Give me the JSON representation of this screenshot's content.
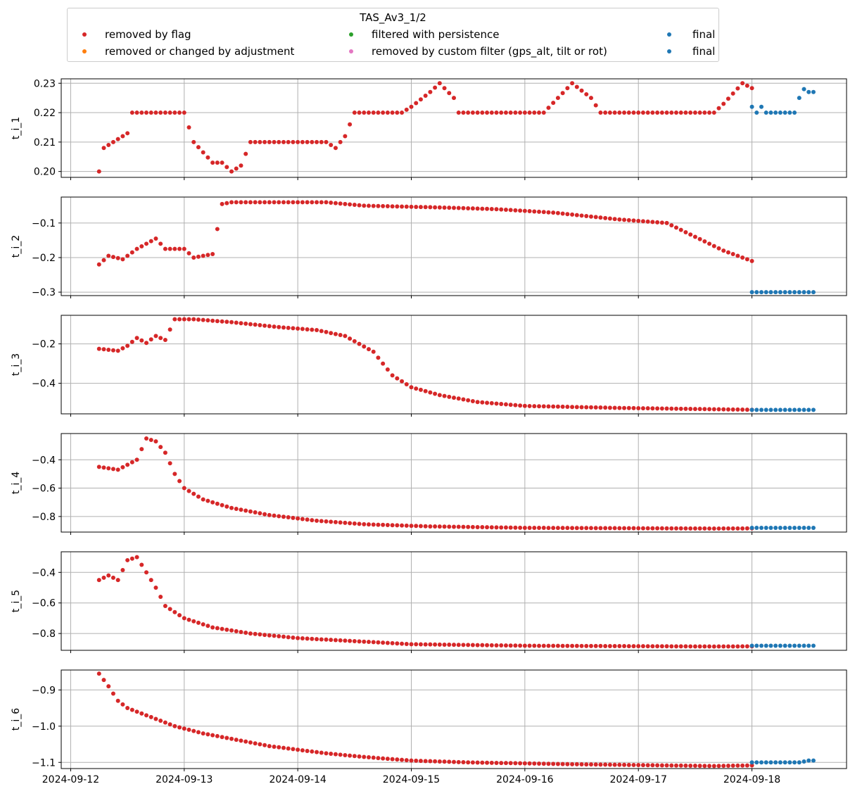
{
  "chart_data": {
    "type": "scatter",
    "legend": {
      "title": "TAS_Av3_1/2",
      "placement": "top-center",
      "entries": [
        {
          "label": "removed by flag",
          "color": "#d62728"
        },
        {
          "label": "removed or changed by adjustment",
          "color": "#ff7f0e"
        },
        {
          "label": "filtered with persistence",
          "color": "#2ca02c"
        },
        {
          "label": "removed by custom filter (gps_alt, tilt or rot)",
          "color": "#e377c2"
        },
        {
          "label": "final",
          "color": "#1f77b4"
        },
        {
          "label": "final",
          "color": "#1f77b4"
        }
      ]
    },
    "x_axis": {
      "type": "date",
      "range": [
        "2024-09-11 22:00",
        "2024-09-18 20:00"
      ],
      "ticks": [
        "2024-09-12",
        "2024-09-13",
        "2024-09-14",
        "2024-09-15",
        "2024-09-16",
        "2024-09-17",
        "2024-09-18"
      ]
    },
    "grid": true,
    "sampling": "hourly",
    "flag_start": "2024-09-12 06:00",
    "final_start": "2024-09-18 00:00",
    "final_end": "2024-09-18 13:00",
    "panels": [
      {
        "ylabel": "t_i_1",
        "ylim": [
          0.198,
          0.2315
        ],
        "yticks": [
          "0.20",
          "0.21",
          "0.22",
          "0.23"
        ],
        "anchors_flag": [
          [
            0,
            0.2
          ],
          [
            1,
            0.208
          ],
          [
            3,
            0.21
          ],
          [
            6,
            0.213
          ],
          [
            7,
            0.22
          ],
          [
            18,
            0.22
          ],
          [
            20,
            0.21
          ],
          [
            24,
            0.203
          ],
          [
            26,
            0.203
          ],
          [
            28,
            0.2
          ],
          [
            30,
            0.202
          ],
          [
            32,
            0.21
          ],
          [
            48,
            0.21
          ],
          [
            50,
            0.208
          ],
          [
            52,
            0.212
          ],
          [
            54,
            0.22
          ],
          [
            64,
            0.22
          ],
          [
            66,
            0.222
          ],
          [
            70,
            0.227
          ],
          [
            72,
            0.23
          ],
          [
            75,
            0.225
          ],
          [
            76,
            0.22
          ],
          [
            94,
            0.22
          ],
          [
            97,
            0.225
          ],
          [
            100,
            0.23
          ],
          [
            104,
            0.225
          ],
          [
            106,
            0.22
          ],
          [
            130,
            0.22
          ],
          [
            132,
            0.223
          ],
          [
            136,
            0.23
          ],
          [
            142,
            0.225
          ],
          [
            144,
            0.22
          ],
          [
            158,
            0.22
          ],
          [
            160,
            0.223
          ],
          [
            162,
            0.23
          ],
          [
            170,
            0.227
          ],
          [
            172,
            0.22
          ],
          [
            174,
            0.22
          ]
        ],
        "anchors_final": [
          [
            0,
            0.222
          ],
          [
            1,
            0.22
          ],
          [
            2,
            0.222
          ],
          [
            3,
            0.22
          ],
          [
            9,
            0.22
          ],
          [
            10,
            0.225
          ],
          [
            11,
            0.228
          ],
          [
            12,
            0.227
          ]
        ]
      },
      {
        "ylabel": "t_i_2",
        "ylim": [
          -0.31,
          -0.025
        ],
        "yticks": [
          "−0.1",
          "−0.2",
          "−0.3"
        ],
        "anchors_flag": [
          [
            0,
            -0.22
          ],
          [
            2,
            -0.195
          ],
          [
            5,
            -0.205
          ],
          [
            8,
            -0.175
          ],
          [
            12,
            -0.145
          ],
          [
            14,
            -0.175
          ],
          [
            18,
            -0.175
          ],
          [
            20,
            -0.2
          ],
          [
            24,
            -0.19
          ],
          [
            26,
            -0.045
          ],
          [
            28,
            -0.04
          ],
          [
            48,
            -0.04
          ],
          [
            56,
            -0.05
          ],
          [
            72,
            -0.055
          ],
          [
            84,
            -0.06
          ],
          [
            96,
            -0.07
          ],
          [
            110,
            -0.09
          ],
          [
            120,
            -0.1
          ],
          [
            132,
            -0.18
          ],
          [
            144,
            -0.24
          ],
          [
            156,
            -0.27
          ],
          [
            168,
            -0.295
          ],
          [
            174,
            -0.3
          ]
        ],
        "anchors_final": [
          [
            0,
            -0.3
          ],
          [
            12,
            -0.3
          ]
        ]
      },
      {
        "ylabel": "t_i_3",
        "ylim": [
          -0.555,
          -0.055
        ],
        "yticks": [
          "−0.2",
          "−0.4"
        ],
        "anchors_flag": [
          [
            0,
            -0.225
          ],
          [
            2,
            -0.23
          ],
          [
            4,
            -0.235
          ],
          [
            6,
            -0.21
          ],
          [
            8,
            -0.17
          ],
          [
            10,
            -0.195
          ],
          [
            12,
            -0.16
          ],
          [
            14,
            -0.18
          ],
          [
            16,
            -0.075
          ],
          [
            20,
            -0.075
          ],
          [
            28,
            -0.09
          ],
          [
            38,
            -0.115
          ],
          [
            46,
            -0.13
          ],
          [
            52,
            -0.16
          ],
          [
            58,
            -0.24
          ],
          [
            62,
            -0.36
          ],
          [
            66,
            -0.42
          ],
          [
            72,
            -0.46
          ],
          [
            80,
            -0.495
          ],
          [
            90,
            -0.515
          ],
          [
            110,
            -0.525
          ],
          [
            140,
            -0.535
          ],
          [
            174,
            -0.535
          ]
        ],
        "anchors_final": [
          [
            0,
            -0.535
          ],
          [
            12,
            -0.535
          ]
        ]
      },
      {
        "ylabel": "t_i_4",
        "ylim": [
          -0.91,
          -0.215
        ],
        "yticks": [
          "−0.4",
          "−0.6",
          "−0.8"
        ],
        "anchors_flag": [
          [
            0,
            -0.45
          ],
          [
            4,
            -0.47
          ],
          [
            8,
            -0.4
          ],
          [
            10,
            -0.25
          ],
          [
            12,
            -0.27
          ],
          [
            14,
            -0.35
          ],
          [
            16,
            -0.5
          ],
          [
            18,
            -0.6
          ],
          [
            22,
            -0.68
          ],
          [
            28,
            -0.74
          ],
          [
            36,
            -0.79
          ],
          [
            46,
            -0.83
          ],
          [
            56,
            -0.855
          ],
          [
            70,
            -0.87
          ],
          [
            90,
            -0.88
          ],
          [
            130,
            -0.885
          ],
          [
            174,
            -0.88
          ]
        ],
        "anchors_final": [
          [
            0,
            -0.88
          ],
          [
            12,
            -0.88
          ]
        ]
      },
      {
        "ylabel": "t_i_5",
        "ylim": [
          -0.91,
          -0.265
        ],
        "yticks": [
          "−0.4",
          "−0.6",
          "−0.8"
        ],
        "anchors_flag": [
          [
            0,
            -0.45
          ],
          [
            2,
            -0.42
          ],
          [
            4,
            -0.45
          ],
          [
            6,
            -0.32
          ],
          [
            8,
            -0.3
          ],
          [
            10,
            -0.4
          ],
          [
            12,
            -0.5
          ],
          [
            14,
            -0.62
          ],
          [
            18,
            -0.7
          ],
          [
            24,
            -0.76
          ],
          [
            32,
            -0.8
          ],
          [
            42,
            -0.83
          ],
          [
            54,
            -0.85
          ],
          [
            66,
            -0.87
          ],
          [
            90,
            -0.88
          ],
          [
            130,
            -0.885
          ],
          [
            174,
            -0.88
          ]
        ],
        "anchors_final": [
          [
            0,
            -0.88
          ],
          [
            12,
            -0.88
          ]
        ]
      },
      {
        "ylabel": "t_i_6",
        "ylim": [
          -1.117,
          -0.845
        ],
        "yticks": [
          "−0.9",
          "−1.0",
          "−1.1"
        ],
        "anchors_flag": [
          [
            0,
            -0.855
          ],
          [
            2,
            -0.89
          ],
          [
            4,
            -0.93
          ],
          [
            6,
            -0.95
          ],
          [
            10,
            -0.97
          ],
          [
            16,
            -1.0
          ],
          [
            22,
            -1.02
          ],
          [
            28,
            -1.035
          ],
          [
            36,
            -1.055
          ],
          [
            48,
            -1.075
          ],
          [
            56,
            -1.085
          ],
          [
            66,
            -1.095
          ],
          [
            78,
            -1.1
          ],
          [
            100,
            -1.105
          ],
          [
            130,
            -1.11
          ],
          [
            174,
            -1.1
          ]
        ],
        "anchors_final": [
          [
            0,
            -1.1
          ],
          [
            10,
            -1.1
          ],
          [
            12,
            -1.095
          ]
        ]
      }
    ]
  }
}
